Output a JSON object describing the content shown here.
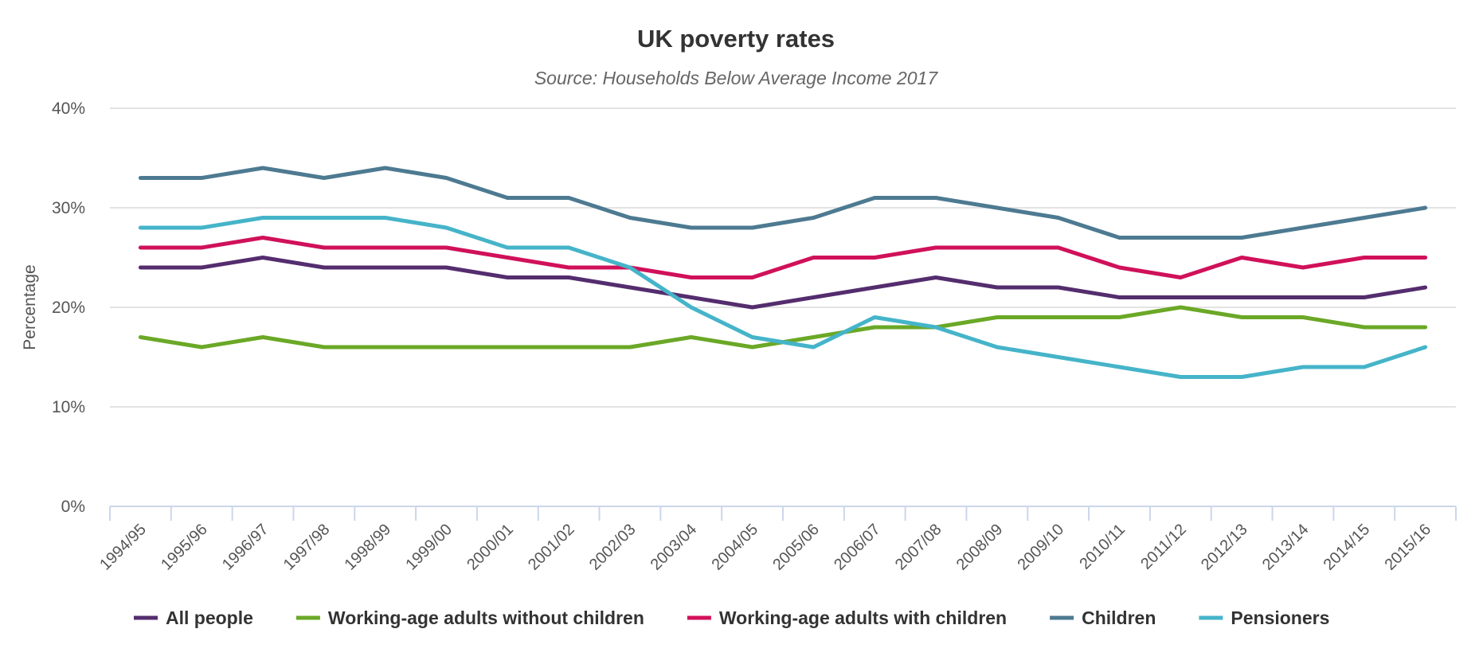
{
  "chart_data": {
    "type": "line",
    "title": "UK poverty rates",
    "subtitle": "Source: Households Below Average Income 2017",
    "xlabel": "",
    "ylabel": "Percentage",
    "ylim": [
      0,
      40
    ],
    "yticks": [
      0,
      10,
      20,
      30,
      40
    ],
    "ytick_labels": [
      "0%",
      "10%",
      "20%",
      "30%",
      "40%"
    ],
    "grid": true,
    "legend_position": "bottom",
    "categories": [
      "1994/95",
      "1995/96",
      "1996/97",
      "1997/98",
      "1998/99",
      "1999/00",
      "2000/01",
      "2001/02",
      "2002/03",
      "2003/04",
      "2004/05",
      "2005/06",
      "2006/07",
      "2007/08",
      "2008/09",
      "2009/10",
      "2010/11",
      "2011/12",
      "2012/13",
      "2013/14",
      "2014/15",
      "2015/16"
    ],
    "series": [
      {
        "name": "All people",
        "color": "#542d6e",
        "values": [
          24,
          24,
          25,
          24,
          24,
          24,
          23,
          23,
          22,
          21,
          20,
          21,
          22,
          23,
          22,
          22,
          21,
          21,
          21,
          21,
          21,
          22
        ]
      },
      {
        "name": "Working-age adults without children",
        "color": "#6aa826",
        "values": [
          17,
          16,
          17,
          16,
          16,
          16,
          16,
          16,
          16,
          17,
          16,
          17,
          18,
          18,
          19,
          19,
          19,
          20,
          19,
          19,
          18,
          18
        ]
      },
      {
        "name": "Working-age adults with children",
        "color": "#d0115a",
        "values": [
          26,
          26,
          27,
          26,
          26,
          26,
          25,
          24,
          24,
          23,
          23,
          25,
          25,
          26,
          26,
          26,
          24,
          23,
          25,
          24,
          25,
          25
        ]
      },
      {
        "name": "Children",
        "color": "#4d7a91",
        "values": [
          33,
          33,
          34,
          33,
          34,
          33,
          31,
          31,
          29,
          28,
          28,
          29,
          31,
          31,
          30,
          29,
          27,
          27,
          27,
          28,
          29,
          30
        ]
      },
      {
        "name": "Pensioners",
        "color": "#45b4c9",
        "values": [
          28,
          28,
          29,
          29,
          29,
          28,
          26,
          26,
          24,
          20,
          17,
          16,
          19,
          18,
          16,
          15,
          14,
          13,
          13,
          14,
          14,
          16
        ]
      }
    ]
  }
}
